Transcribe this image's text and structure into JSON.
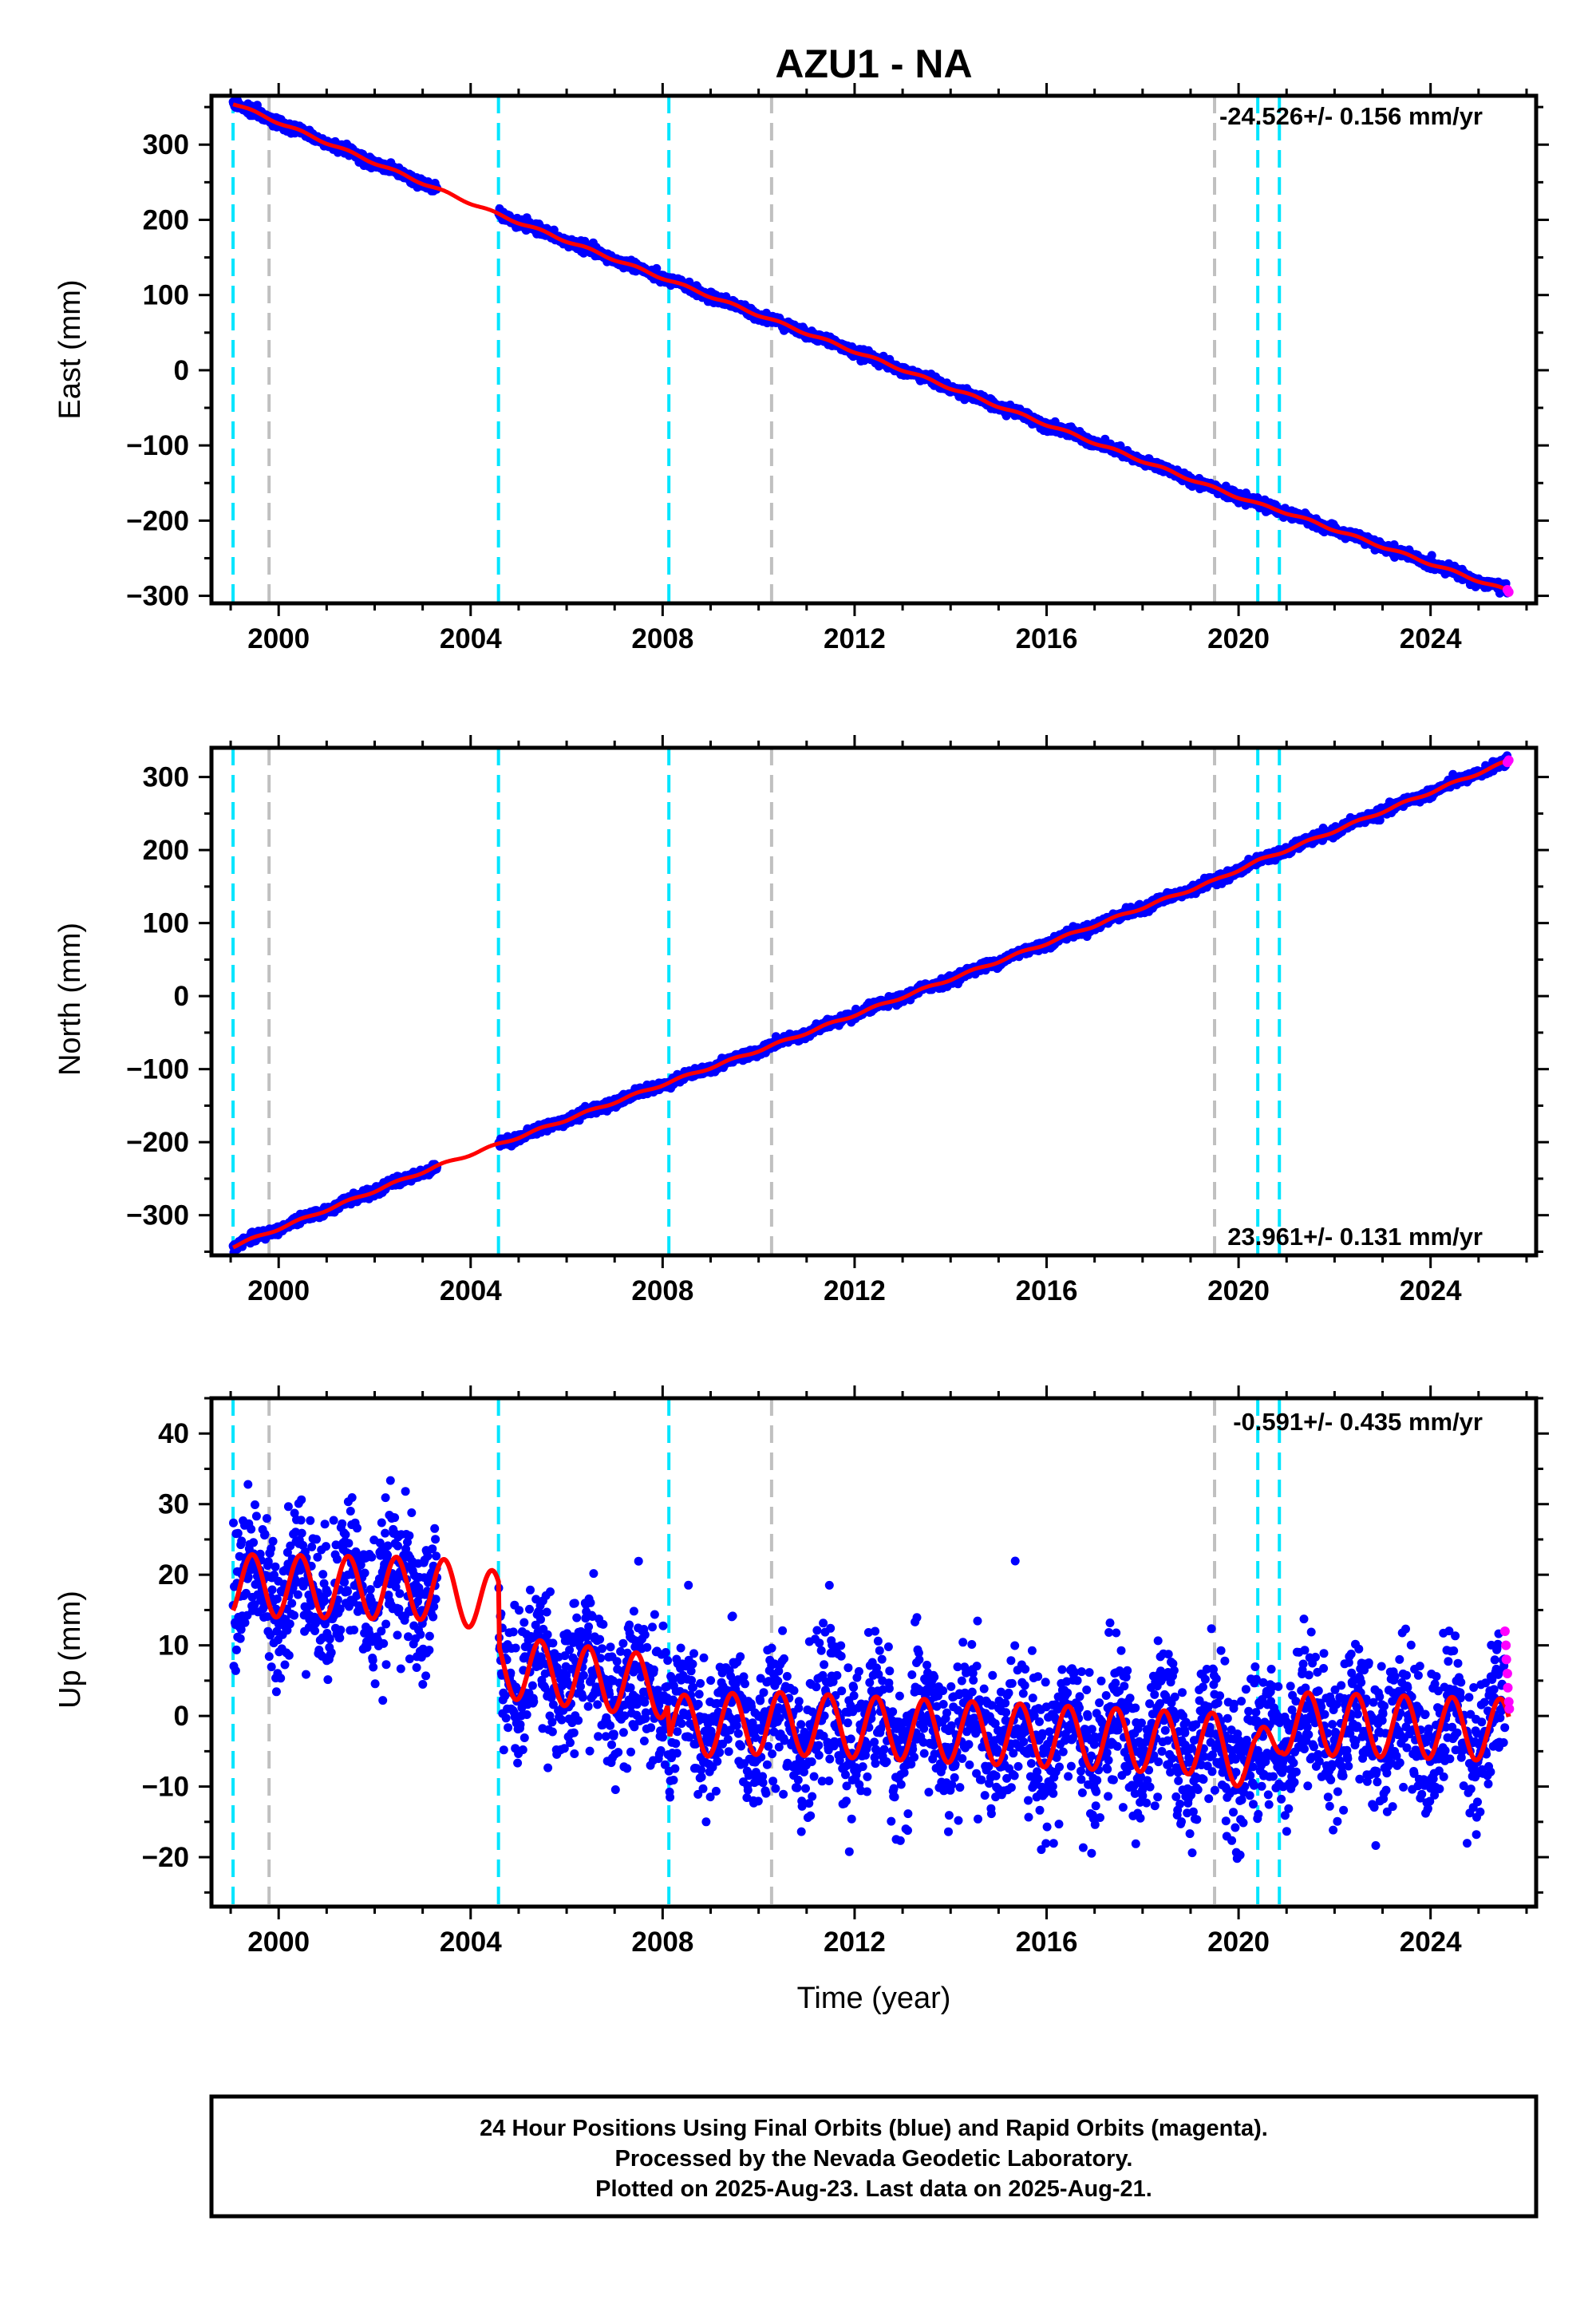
{
  "figure": {
    "title": "AZU1 - NA",
    "xlabel": "Time (year)",
    "footer_lines": [
      "24 Hour Positions Using Final Orbits (blue) and Rapid Orbits (magenta).",
      "Processed by the Nevada Geodetic Laboratory.",
      "Plotted on 2025-Aug-23. Last data on 2025-Aug-21."
    ],
    "colors": {
      "final_orbits": "#0000ff",
      "rapid_orbits": "#ff00ff",
      "model_fit": "#ff0000",
      "equipment_change": "#00e5ff",
      "earthquake": "#c0c0c0"
    }
  },
  "chart_data": [
    {
      "type": "scatter",
      "name": "east",
      "ylabel": "East (mm)",
      "xlim": [
        1998.6,
        2026.2
      ],
      "ylim": [
        -310,
        365
      ],
      "xticks": [
        2000,
        2004,
        2008,
        2012,
        2016,
        2020,
        2024
      ],
      "yticks": [
        -300,
        -200,
        -100,
        0,
        100,
        200,
        300
      ],
      "rate_text": "-24.526+/- 0.156 mm/yr",
      "rate_position": "top-right",
      "cyan_lines": [
        1999.05,
        2004.58,
        2008.13,
        2020.4,
        2020.85
      ],
      "gray_lines": [
        1999.8,
        2010.27,
        2019.5
      ],
      "trend": [
        [
          1999.05,
          355
        ],
        [
          2003.3,
          241
        ],
        [
          2004.58,
          207
        ],
        [
          2010.27,
          67
        ],
        [
          2019.5,
          -157
        ],
        [
          2020.4,
          -178
        ],
        [
          2020.85,
          -186
        ],
        [
          2025.63,
          -294
        ]
      ],
      "data_gap": [
        2003.3,
        2004.58
      ],
      "noise_mm": 3,
      "seasonal_amp_mm": 1.5,
      "rapid_points": [
        [
          2025.6,
          -292
        ],
        [
          2025.63,
          -295
        ]
      ]
    },
    {
      "type": "scatter",
      "name": "north",
      "ylabel": "North (mm)",
      "xlim": [
        1998.6,
        2026.2
      ],
      "ylim": [
        -355,
        340
      ],
      "xticks": [
        2000,
        2004,
        2008,
        2012,
        2016,
        2020,
        2024
      ],
      "yticks": [
        -300,
        -200,
        -100,
        0,
        100,
        200,
        300
      ],
      "rate_text": "23.961+/- 0.131 mm/yr",
      "rate_position": "bottom-right",
      "cyan_lines": [
        1999.05,
        2004.58,
        2008.13,
        2020.4,
        2020.85
      ],
      "gray_lines": [
        1999.8,
        2010.27,
        2019.5
      ],
      "trend": [
        [
          1999.05,
          -343
        ],
        [
          2003.3,
          -233
        ],
        [
          2004.58,
          -203
        ],
        [
          2008.13,
          -118
        ],
        [
          2010.27,
          -68
        ],
        [
          2019.5,
          158
        ],
        [
          2020.4,
          185
        ],
        [
          2020.85,
          196
        ],
        [
          2025.63,
          322
        ]
      ],
      "data_gap": [
        2003.3,
        2004.58
      ],
      "noise_mm": 3,
      "seasonal_amp_mm": 1.5,
      "rapid_points": [
        [
          2025.6,
          320
        ],
        [
          2025.63,
          323
        ]
      ]
    },
    {
      "type": "scatter",
      "name": "up",
      "ylabel": "Up (mm)",
      "xlim": [
        1998.6,
        2026.2
      ],
      "ylim": [
        -27,
        45
      ],
      "xticks": [
        2000,
        2004,
        2008,
        2012,
        2016,
        2020,
        2024
      ],
      "yticks": [
        -20,
        -10,
        0,
        10,
        20,
        30,
        40
      ],
      "rate_text": "-0.591+/- 0.435 mm/yr",
      "rate_position": "top-right",
      "cyan_lines": [
        1999.05,
        2004.58,
        2008.13,
        2020.4,
        2020.85
      ],
      "gray_lines": [
        1999.8,
        2010.27,
        2019.5
      ],
      "trend": [
        [
          1999.05,
          18.5
        ],
        [
          2003.3,
          18
        ],
        [
          2004.58,
          16
        ],
        [
          2004.6,
          7
        ],
        [
          2008.1,
          4
        ],
        [
          2008.15,
          -1.5
        ],
        [
          2010.27,
          -1
        ],
        [
          2019.5,
          -4
        ],
        [
          2020.4,
          -7
        ],
        [
          2020.9,
          -1
        ],
        [
          2025.63,
          -2
        ]
      ],
      "data_gap": [
        2003.3,
        2004.58
      ],
      "noise_mm": 5,
      "seasonal_amp_mm": 4,
      "rapid_points": [
        [
          2025.55,
          12
        ],
        [
          2025.57,
          10
        ],
        [
          2025.58,
          8
        ],
        [
          2025.6,
          6
        ],
        [
          2025.61,
          4
        ],
        [
          2025.63,
          2
        ],
        [
          2025.64,
          1
        ]
      ]
    }
  ]
}
